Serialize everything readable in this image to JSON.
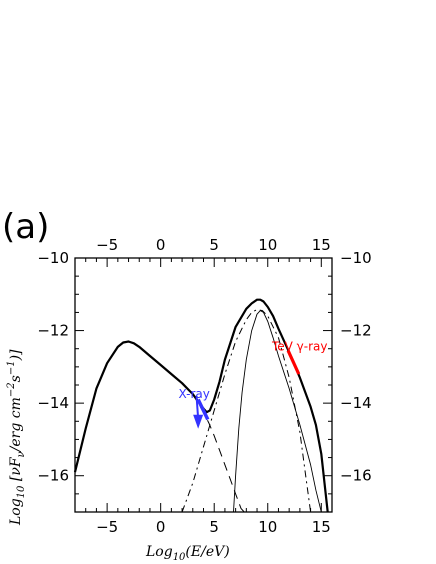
{
  "chart_data": {
    "type": "line",
    "panel_label": "(a)",
    "xlabel_text": "Log",
    "xlabel_sub": "10",
    "xlabel_rest": "(E/eV)",
    "ylabel_text": "Log",
    "ylabel_sub": "10",
    "ylabel_rest": " [νF",
    "ylabel_nu": "ν",
    "ylabel_unit": "/erg cm",
    "ylabel_exp1": "−2",
    "ylabel_s": "s",
    "ylabel_exp2": "−1",
    "ylabel_close": ")]",
    "xlim": [
      -8,
      16
    ],
    "ylim": [
      -17,
      -10
    ],
    "x_ticks": [
      "−5",
      "0",
      "5",
      "10",
      "15"
    ],
    "x_tick_values": [
      -5,
      0,
      5,
      10,
      15
    ],
    "y_ticks": [
      "−10",
      "−12",
      "−14",
      "−16"
    ],
    "y_tick_values": [
      -10,
      -12,
      -14,
      -16
    ],
    "annotations": [
      {
        "text": "X-ray",
        "x": 4.0,
        "y": -13.8,
        "color": "#3333ff"
      },
      {
        "text": "TeV γ-ray",
        "x": 12.8,
        "y": -12.5,
        "color": "#ff0000"
      }
    ],
    "series": [
      {
        "style": "solid-thick",
        "x": [
          -8,
          -7,
          -6,
          -5,
          -4,
          -3.5,
          -3,
          -2.5,
          -2,
          -1,
          0,
          1,
          2,
          3,
          3.5,
          4,
          4.3,
          4.6,
          5,
          5.5,
          6,
          7,
          8,
          8.5,
          9,
          9.3,
          9.6,
          10,
          10.5,
          11,
          12,
          13,
          14,
          14.5,
          15,
          15.3,
          15.6
        ],
        "y": [
          -15.9,
          -14.7,
          -13.6,
          -12.9,
          -12.45,
          -12.33,
          -12.3,
          -12.35,
          -12.45,
          -12.7,
          -12.95,
          -13.2,
          -13.45,
          -13.75,
          -13.95,
          -14.15,
          -14.25,
          -14.2,
          -13.9,
          -13.4,
          -12.8,
          -11.9,
          -11.4,
          -11.25,
          -11.15,
          -11.15,
          -11.2,
          -11.35,
          -11.6,
          -11.95,
          -12.6,
          -13.3,
          -14.1,
          -14.6,
          -15.4,
          -16.2,
          -17.0
        ]
      },
      {
        "style": "dashed",
        "x": [
          3.0,
          3.5,
          4.0,
          4.5,
          5.0,
          5.5,
          6.0,
          6.5,
          7.0,
          7.5,
          7.8
        ],
        "y": [
          -13.75,
          -14.0,
          -14.25,
          -14.55,
          -14.9,
          -15.3,
          -15.7,
          -16.1,
          -16.5,
          -16.9,
          -17.0
        ]
      },
      {
        "style": "dash-dot",
        "x": [
          2.0,
          3.0,
          4.0,
          5.0,
          6.0,
          7.0,
          8.0,
          8.5,
          9.0,
          9.5,
          10.0,
          11.0,
          12.0,
          13.0,
          13.5,
          14.0
        ],
        "y": [
          -17.0,
          -16.2,
          -15.2,
          -14.2,
          -13.2,
          -12.3,
          -11.7,
          -11.5,
          -11.42,
          -11.45,
          -11.6,
          -12.2,
          -13.3,
          -14.8,
          -15.9,
          -17.0
        ]
      },
      {
        "style": "solid-thin",
        "x": [
          6.8,
          7.0,
          7.3,
          7.6,
          8.0,
          8.5,
          9.0,
          9.3,
          9.6,
          10.0,
          10.5,
          11.0,
          12.0,
          13.0,
          14.0,
          14.5,
          15.0
        ],
        "y": [
          -17.0,
          -16.0,
          -14.7,
          -13.7,
          -12.8,
          -12.0,
          -11.55,
          -11.45,
          -11.5,
          -11.75,
          -12.2,
          -12.7,
          -13.6,
          -14.6,
          -15.7,
          -16.4,
          -17.0
        ]
      },
      {
        "style": "xray",
        "color": "#3333ff",
        "x": [
          3.5,
          4.4
        ],
        "y": [
          -13.9,
          -14.45
        ]
      },
      {
        "style": "tev",
        "color": "#ff0000",
        "x": [
          11.9,
          12.9
        ],
        "y": [
          -12.55,
          -13.2
        ]
      }
    ]
  }
}
